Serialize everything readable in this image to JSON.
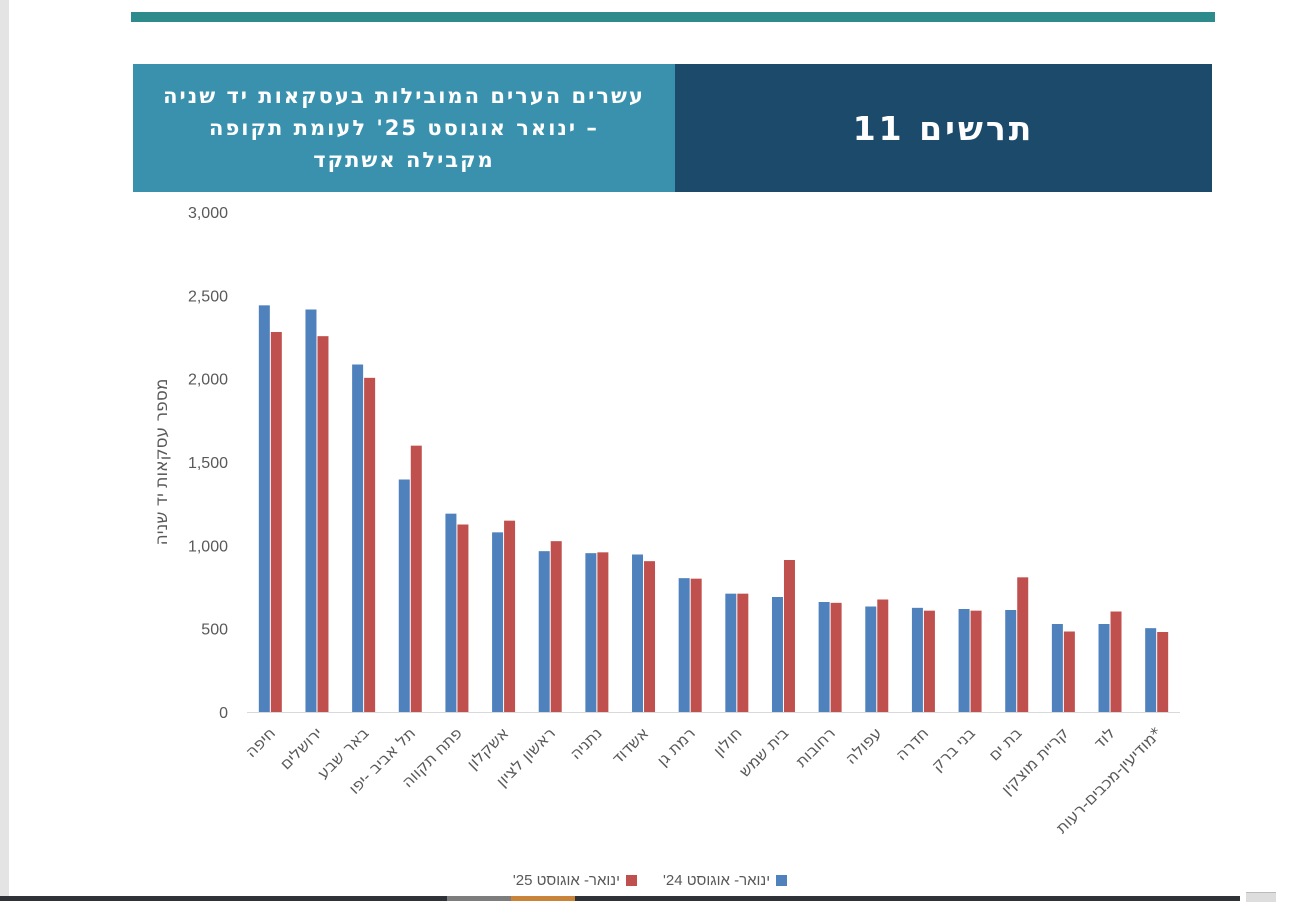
{
  "header": {
    "title": "תרשים 11",
    "subtitle": "עשרים הערים המובילות בעסקאות יד שניה – ינואר אוגוסט 25' לעומת תקופה מקבילה אשתקד"
  },
  "chart_data": {
    "type": "bar",
    "title": "",
    "xlabel": "",
    "ylabel": "מספר עסקאות יד שניה",
    "ylim": [
      0,
      3000
    ],
    "yticks": [
      0,
      500,
      1000,
      1500,
      2000,
      2500,
      3000
    ],
    "ytick_labels": [
      "0",
      "500",
      "1,000",
      "1,500",
      "2,000",
      "2,500",
      "3,000"
    ],
    "grid": false,
    "legend_position": "bottom",
    "categories": [
      "חיפה",
      "ירושלים",
      "באר שבע",
      "תל אביב -יפו",
      "פתח תקווה",
      "אשקלון",
      "ראשון לציון",
      "נתניה",
      "אשדוד",
      "רמת גן",
      "חולון",
      "בית שמש",
      "רחובות",
      "עפולה",
      "חדרה",
      "בני ברק",
      "בת ים",
      "קריית מוצקין",
      "לוד",
      "מודיעין-מכבים-רעות*"
    ],
    "series": [
      {
        "name": "ינואר- אוגוסט 24'",
        "color": "#4f81bd",
        "values": [
          2440,
          2415,
          2085,
          1395,
          1190,
          1078,
          965,
          953,
          945,
          803,
          710,
          690,
          660,
          633,
          625,
          618,
          612,
          528,
          528,
          503
        ]
      },
      {
        "name": "ינואר- אוגוסט 25'",
        "color": "#c0504d",
        "values": [
          2280,
          2255,
          2005,
          1598,
          1125,
          1148,
          1025,
          958,
          905,
          800,
          710,
          912,
          655,
          675,
          608,
          608,
          808,
          483,
          603,
          480
        ]
      }
    ]
  }
}
